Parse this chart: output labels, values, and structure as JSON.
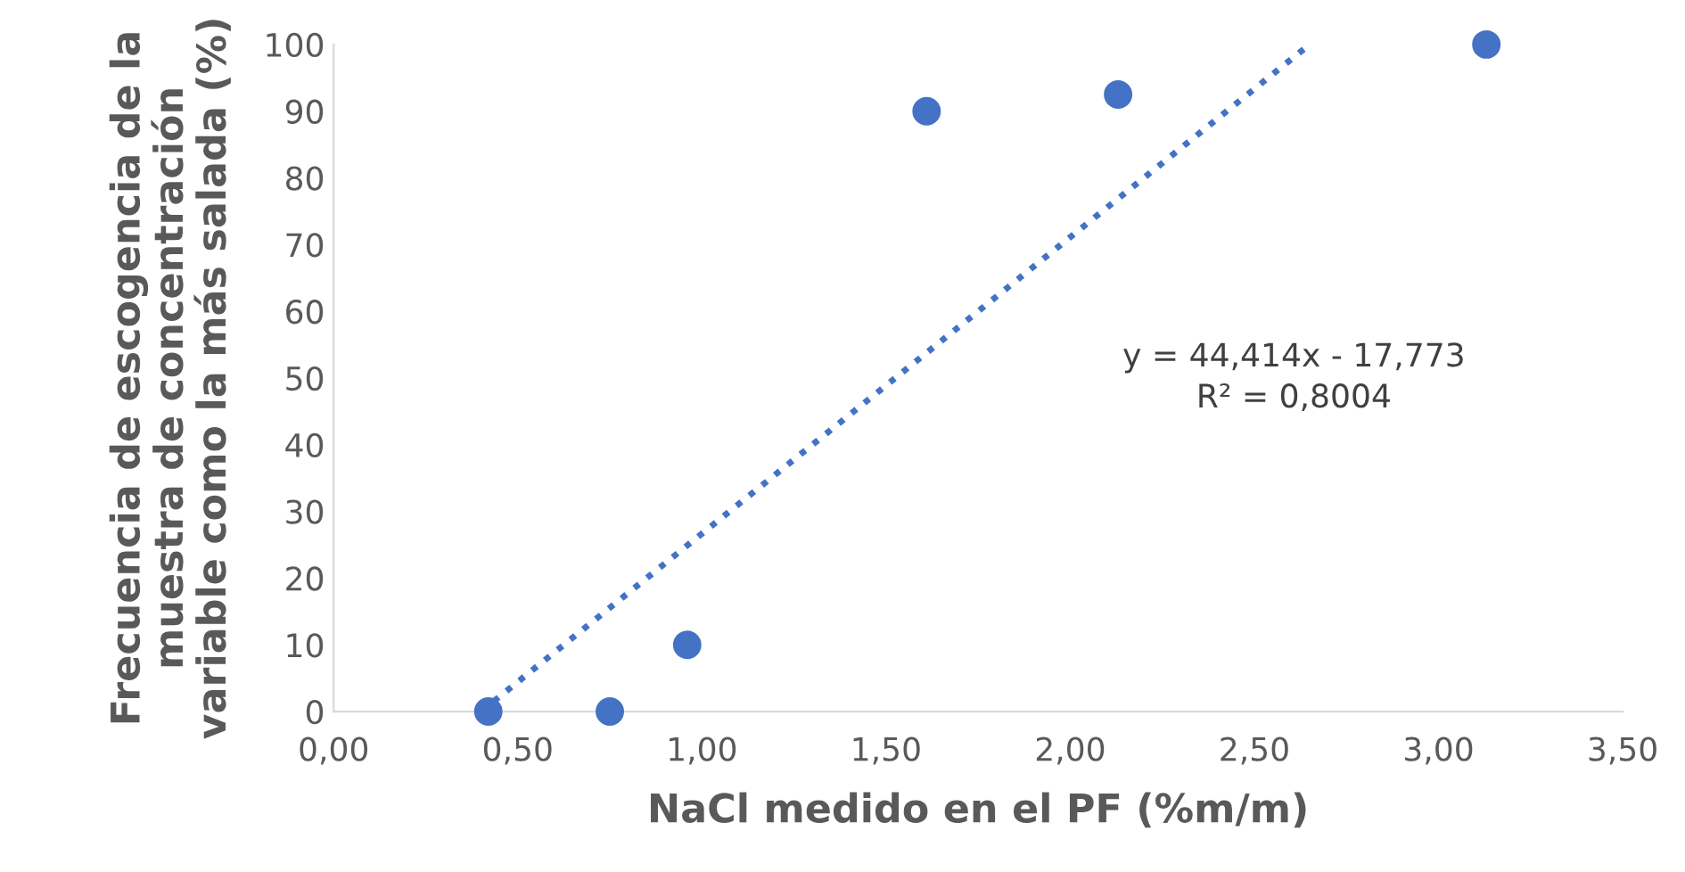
{
  "chart_data": {
    "type": "scatter",
    "xlabel": "NaCl medido en el PF (%m/m)",
    "ylabel": "Frecuencia de escogencia de la\nmuestra de concentración\nvariable como la más salada (%)",
    "series": [
      {
        "color": "#4472c4",
        "marker": "circle",
        "x": [
          0.42,
          0.75,
          0.96,
          1.61,
          2.13,
          3.13
        ],
        "values": [
          0,
          0,
          10,
          90,
          92.5,
          100
        ]
      },
      {
        "type": "line",
        "color": "#4472c4",
        "marker": "none",
        "line_style": "dotted",
        "x": [
          0.4,
          2.65
        ],
        "values": [
          0,
          100
        ]
      }
    ],
    "annotations": [
      "y = 44,414x - 17,773\nR² = 0,8004"
    ],
    "xlim": [
      0,
      3.5
    ],
    "ylim": [
      0,
      100
    ],
    "xticks": [
      {
        "value": 0,
        "label": "0,00"
      },
      {
        "value": 0.5,
        "label": "0,50"
      },
      {
        "value": 1,
        "label": "1,00"
      },
      {
        "value": 1.5,
        "label": "1,50"
      },
      {
        "value": 2,
        "label": "2,00"
      },
      {
        "value": 2.5,
        "label": "2,50"
      },
      {
        "value": 3,
        "label": "3,00"
      },
      {
        "value": 3.5,
        "label": "3,50"
      }
    ],
    "yticks": [
      0,
      10,
      20,
      30,
      40,
      50,
      60,
      70,
      80,
      90,
      100
    ],
    "grid": false,
    "legend": false
  }
}
